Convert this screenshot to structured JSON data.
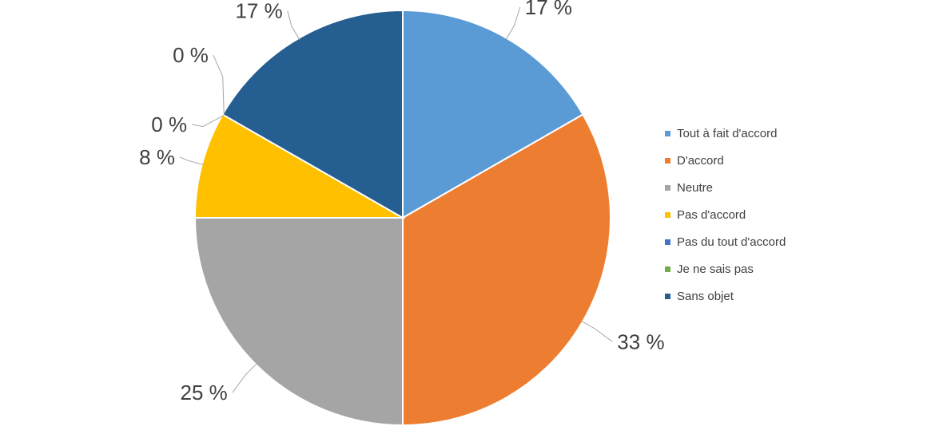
{
  "chart_data": {
    "type": "pie",
    "title": "",
    "categories": [
      "Tout à fait d'accord",
      "D'accord",
      "Neutre",
      "Pas d'accord",
      "Pas du tout d'accord",
      "Je ne sais pas",
      "Sans objet"
    ],
    "values": [
      16.7,
      33.3,
      25.0,
      8.3,
      0,
      0,
      16.7
    ],
    "data_labels": [
      "17 %",
      "33 %",
      "25 %",
      "8 %",
      "0 %",
      "0 %",
      "17 %"
    ],
    "colors": [
      "#5B9BD5",
      "#ED7D31",
      "#A5A5A5",
      "#FFC000",
      "#4472C4",
      "#70AD47",
      "#255E91"
    ],
    "start_angle_deg": 0,
    "direction": "clockwise",
    "legend_position": "right"
  }
}
